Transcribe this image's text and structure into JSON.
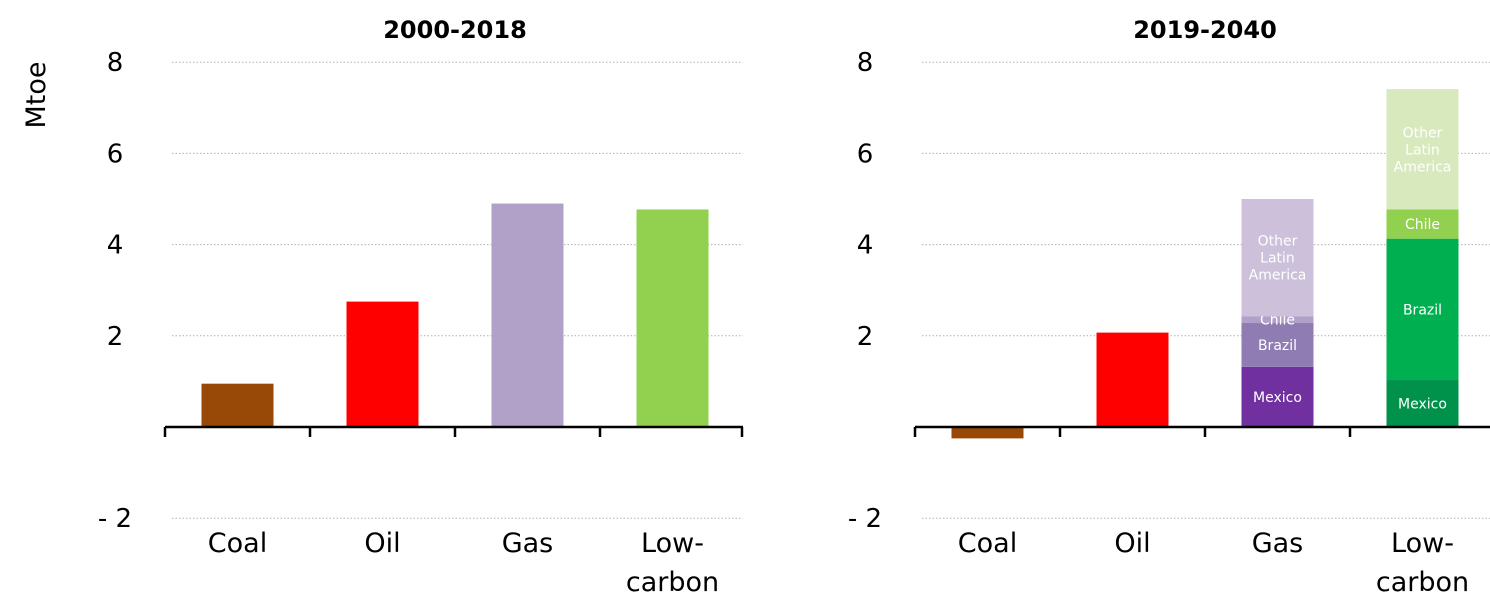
{
  "chart_data": {
    "ylabel": "Mtoe",
    "panels": [
      {
        "type": "bar",
        "title": "2000-2018",
        "categories": [
          "Coal",
          "Oil",
          "Gas",
          "Low-carbon"
        ],
        "yticks": [
          -2,
          2,
          4,
          6,
          8
        ],
        "ytick_labels": [
          "- 2",
          "2",
          "4",
          "6",
          "8"
        ],
        "ylim": [
          -2,
          8
        ],
        "grid": true,
        "bars": [
          {
            "category": "Coal",
            "segments": [
              {
                "label": "",
                "value": 0.95,
                "color": "#984807",
                "text_color": "#ffffff"
              }
            ]
          },
          {
            "category": "Oil",
            "segments": [
              {
                "label": "",
                "value": 2.75,
                "color": "#ff0000",
                "text_color": "#ffffff"
              }
            ]
          },
          {
            "category": "Gas",
            "segments": [
              {
                "label": "",
                "value": 4.9,
                "color": "#b1a0c7",
                "text_color": "#ffffff"
              }
            ]
          },
          {
            "category": "Low-carbon",
            "segments": [
              {
                "label": "",
                "value": 4.77,
                "color": "#92d050",
                "text_color": "#ffffff"
              }
            ]
          }
        ]
      },
      {
        "type": "stacked-bar",
        "title": "2019-2040",
        "categories": [
          "Coal",
          "Oil",
          "Gas",
          "Low-carbon"
        ],
        "yticks": [
          -2,
          2,
          4,
          6,
          8
        ],
        "ytick_labels": [
          "- 2",
          "2",
          "4",
          "6",
          "8"
        ],
        "ylim": [
          -2,
          8
        ],
        "grid": true,
        "bars": [
          {
            "category": "Coal",
            "segments": [
              {
                "label": "",
                "value": -0.25,
                "color": "#984807",
                "text_color": "#ffffff"
              }
            ]
          },
          {
            "category": "Oil",
            "segments": [
              {
                "label": "",
                "value": 2.07,
                "color": "#ff0000",
                "text_color": "#ffffff"
              }
            ]
          },
          {
            "category": "Gas",
            "segments": [
              {
                "label": "Mexico",
                "value": 1.32,
                "color": "#7030a0",
                "text_color": "#ffffff"
              },
              {
                "label": "Brazil",
                "value": 0.96,
                "color": "#8e7cb2",
                "text_color": "#ffffff"
              },
              {
                "label": "Chile",
                "value": 0.15,
                "color": "#b1a0c7",
                "text_color": "#ffffff"
              },
              {
                "label": "Other Latin America",
                "value": 2.57,
                "color": "#ccc0da",
                "text_color": "#ffffff"
              }
            ]
          },
          {
            "category": "Low-carbon",
            "segments": [
              {
                "label": "Mexico",
                "value": 1.03,
                "color": "#00924a",
                "text_color": "#ffffff"
              },
              {
                "label": "Brazil",
                "value": 3.1,
                "color": "#00b050",
                "text_color": "#ffffff"
              },
              {
                "label": "Chile",
                "value": 0.64,
                "color": "#92d050",
                "text_color": "#ffffff"
              },
              {
                "label": "Other Latin America",
                "value": 2.64,
                "color": "#d8e9bd",
                "text_color": "#ffffff"
              }
            ]
          }
        ]
      }
    ]
  }
}
